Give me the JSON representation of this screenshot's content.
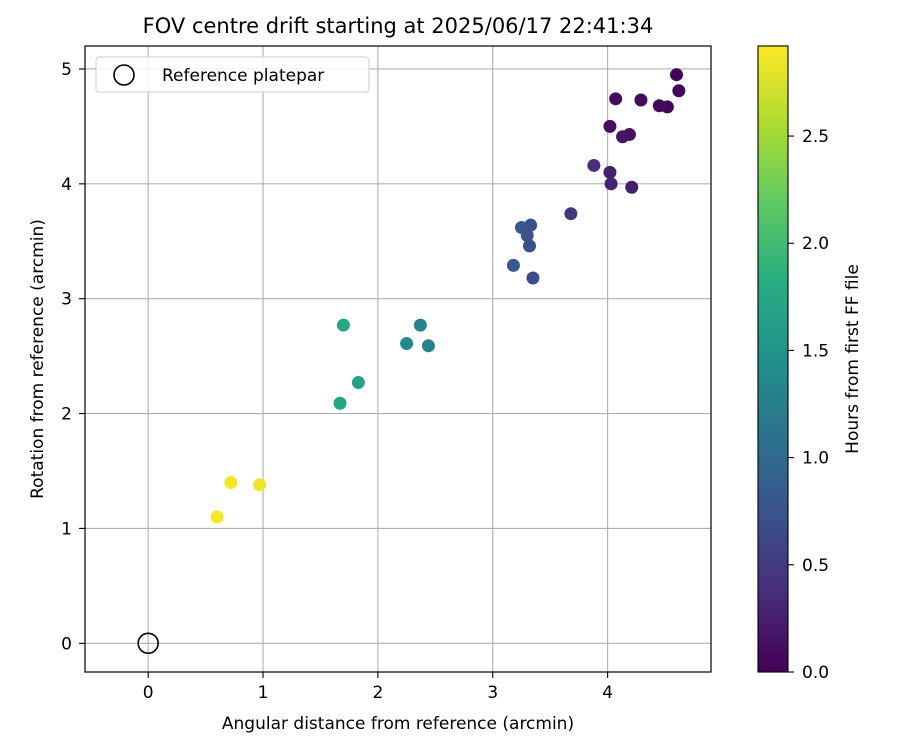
{
  "chart_data": {
    "type": "scatter",
    "title": "FOV centre drift starting at 2025/06/17 22:41:34",
    "xlabel": "Angular distance from reference (arcmin)",
    "ylabel": "Rotation from reference (arcmin)",
    "xlim": [
      -0.55,
      4.9
    ],
    "ylim": [
      -0.25,
      5.2
    ],
    "xticks": [
      0,
      1,
      2,
      3,
      4
    ],
    "yticks": [
      0,
      1,
      2,
      3,
      4,
      5
    ],
    "grid": true,
    "legend": {
      "placement": "top-left",
      "entries": [
        "Reference platepar"
      ]
    },
    "reference_point": {
      "x": 0,
      "y": 0,
      "label": "Reference platepar"
    },
    "colorbar": {
      "label": "Hours from first FF file",
      "colormap": "viridis",
      "range": [
        0.0,
        2.92
      ],
      "ticks": [
        "0.0",
        "0.5",
        "1.0",
        "1.5",
        "2.0",
        "2.5"
      ]
    },
    "points": [
      {
        "x": 4.6,
        "y": 4.95,
        "hours": 0.02
      },
      {
        "x": 4.62,
        "y": 4.81,
        "hours": 0.04
      },
      {
        "x": 4.07,
        "y": 4.74,
        "hours": 0.1
      },
      {
        "x": 4.29,
        "y": 4.73,
        "hours": 0.08
      },
      {
        "x": 4.45,
        "y": 4.68,
        "hours": 0.07
      },
      {
        "x": 4.52,
        "y": 4.67,
        "hours": 0.05
      },
      {
        "x": 4.02,
        "y": 4.5,
        "hours": 0.12
      },
      {
        "x": 4.19,
        "y": 4.43,
        "hours": 0.14
      },
      {
        "x": 4.13,
        "y": 4.41,
        "hours": 0.16
      },
      {
        "x": 3.88,
        "y": 4.16,
        "hours": 0.38
      },
      {
        "x": 4.02,
        "y": 4.1,
        "hours": 0.25
      },
      {
        "x": 4.03,
        "y": 4.0,
        "hours": 0.28
      },
      {
        "x": 4.21,
        "y": 3.97,
        "hours": 0.22
      },
      {
        "x": 3.68,
        "y": 3.74,
        "hours": 0.45
      },
      {
        "x": 3.33,
        "y": 3.64,
        "hours": 0.72
      },
      {
        "x": 3.25,
        "y": 3.62,
        "hours": 0.76
      },
      {
        "x": 3.3,
        "y": 3.55,
        "hours": 0.74
      },
      {
        "x": 3.32,
        "y": 3.46,
        "hours": 0.7
      },
      {
        "x": 3.18,
        "y": 3.29,
        "hours": 0.8
      },
      {
        "x": 3.35,
        "y": 3.18,
        "hours": 0.68
      },
      {
        "x": 1.7,
        "y": 2.77,
        "hours": 1.72
      },
      {
        "x": 2.37,
        "y": 2.77,
        "hours": 1.28
      },
      {
        "x": 2.25,
        "y": 2.61,
        "hours": 1.35
      },
      {
        "x": 2.44,
        "y": 2.59,
        "hours": 1.3
      },
      {
        "x": 1.83,
        "y": 2.27,
        "hours": 1.66
      },
      {
        "x": 1.67,
        "y": 2.09,
        "hours": 1.74
      },
      {
        "x": 0.72,
        "y": 1.4,
        "hours": 2.88
      },
      {
        "x": 0.97,
        "y": 1.38,
        "hours": 2.86
      },
      {
        "x": 0.6,
        "y": 1.1,
        "hours": 2.9
      }
    ]
  }
}
